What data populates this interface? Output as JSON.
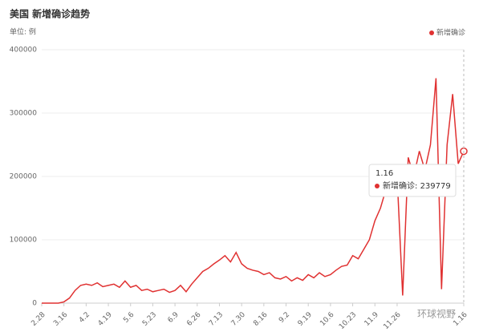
{
  "chart_data": {
    "type": "line",
    "title": "美国 新增确诊趋势",
    "subtitle": "单位: 例",
    "categories": [
      "2.28",
      null,
      null,
      null,
      "3.16",
      null,
      null,
      null,
      "4.2",
      null,
      null,
      null,
      "4.19",
      null,
      null,
      null,
      "5.6",
      null,
      null,
      null,
      "5.23",
      null,
      null,
      null,
      "6.9",
      null,
      null,
      null,
      "6.26",
      null,
      null,
      null,
      "7.13",
      null,
      null,
      null,
      "7.30",
      null,
      null,
      null,
      "8.16",
      null,
      null,
      null,
      "9.2",
      null,
      null,
      null,
      "9.19",
      null,
      null,
      null,
      "10.6",
      null,
      null,
      null,
      "10.23",
      null,
      null,
      null,
      "11.9",
      null,
      null,
      null,
      "11.26",
      null,
      null,
      null,
      null,
      null,
      null,
      null,
      null,
      null,
      null,
      null,
      "1.16"
    ],
    "series": [
      {
        "name": "新增确诊",
        "color": "#e03131",
        "values": [
          0,
          0,
          0,
          0,
          2000,
          8000,
          20000,
          28000,
          30000,
          28000,
          32000,
          26000,
          28000,
          30000,
          25000,
          35000,
          25000,
          28000,
          20000,
          22000,
          18000,
          20000,
          22000,
          17000,
          20000,
          28000,
          18000,
          30000,
          40000,
          50000,
          55000,
          62000,
          68000,
          75000,
          65000,
          80000,
          62000,
          55000,
          52000,
          50000,
          45000,
          48000,
          40000,
          38000,
          42000,
          35000,
          40000,
          36000,
          45000,
          40000,
          48000,
          42000,
          45000,
          52000,
          58000,
          60000,
          75000,
          70000,
          85000,
          100000,
          130000,
          150000,
          180000,
          175000,
          200000,
          12000,
          230000,
          200000,
          240000,
          210000,
          250000,
          355000,
          22000,
          250000,
          330000,
          220000,
          239779
        ]
      }
    ],
    "ylim": [
      0,
      400000
    ],
    "yticks": [
      0,
      100000,
      200000,
      300000,
      400000
    ],
    "grid": true
  },
  "watermark": "环球视野"
}
